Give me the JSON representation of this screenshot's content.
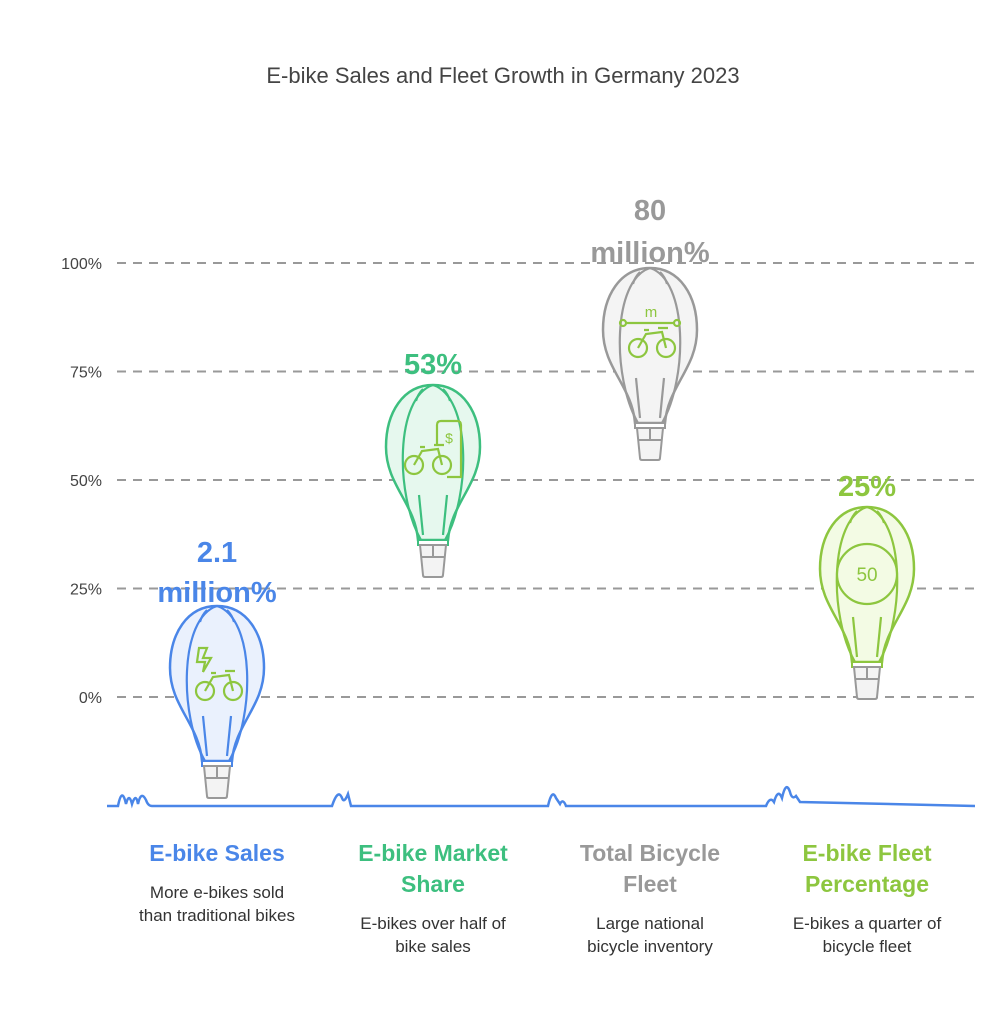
{
  "chart_data": {
    "type": "pictorial-bar",
    "title": "E-bike Sales and Fleet Growth in Germany 2023",
    "y_ticks": [
      "100%",
      "75%",
      "50%",
      "25%",
      "0%"
    ],
    "ylim": [
      0,
      100
    ],
    "grid": true,
    "categories": [
      {
        "name": "E-bike Sales",
        "value_label": [
          "2.1",
          "million%"
        ],
        "value": 2.1,
        "description": [
          "More e-bikes sold",
          "than traditional bikes"
        ],
        "color": "#4a86e8",
        "fill": "#eaf1fd",
        "icon": "electric-bike-icon"
      },
      {
        "name": "E-bike Market Share",
        "name_lines": [
          "E-bike Market",
          "Share"
        ],
        "value_label": [
          "53%"
        ],
        "value": 53,
        "description": [
          "E-bikes over half of",
          "bike sales"
        ],
        "color": "#3dbf7f",
        "fill": "#e6f8ee",
        "icon": "bike-price-tag-icon"
      },
      {
        "name": "Total Bicycle Fleet",
        "name_lines": [
          "Total Bicycle",
          "Fleet"
        ],
        "value_label": [
          "80",
          "million%"
        ],
        "value": 80,
        "description": [
          "Large national",
          "bicycle inventory"
        ],
        "color": "#999999",
        "fill": "#f4f4f4",
        "icon": "bike-distance-icon"
      },
      {
        "name": "E-bike Fleet Percentage",
        "name_lines": [
          "E-bike Fleet",
          "Percentage"
        ],
        "value_label": [
          "25%"
        ],
        "value": 25,
        "description": [
          "E-bikes a quarter of",
          "bicycle fleet"
        ],
        "color": "#8dc63f",
        "fill": "#f3fbe4",
        "icon": "speed-50-icon"
      }
    ],
    "icon_color": "#8dc63f",
    "icon_text": {
      "speed": "50",
      "distance": "m",
      "price": "$"
    }
  }
}
